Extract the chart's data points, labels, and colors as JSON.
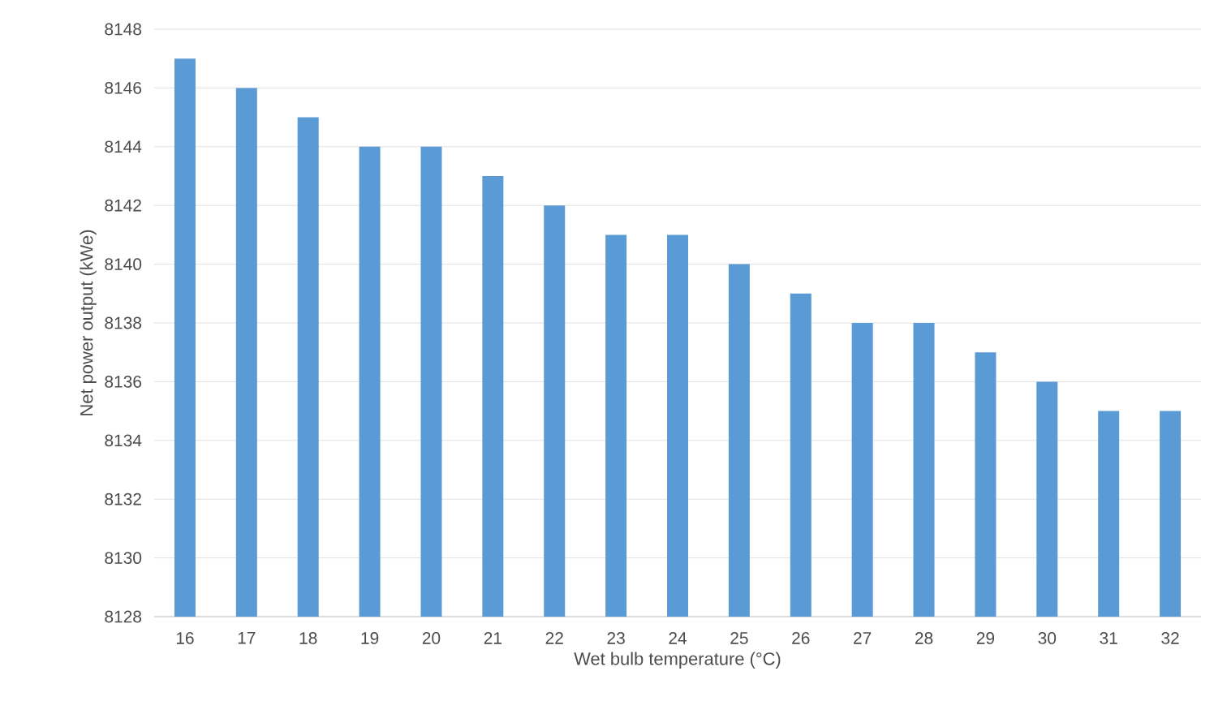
{
  "chart_data": {
    "type": "bar",
    "xlabel": "Wet bulb temperature (°C)",
    "ylabel": "Net power output (kWe)",
    "categories": [
      "16",
      "17",
      "18",
      "19",
      "20",
      "21",
      "22",
      "23",
      "24",
      "25",
      "26",
      "27",
      "28",
      "29",
      "30",
      "31",
      "32"
    ],
    "values": [
      8147,
      8146,
      8145,
      8144,
      8144,
      8143,
      8142,
      8141,
      8141,
      8140,
      8139,
      8138,
      8138,
      8137,
      8136,
      8135,
      8135
    ],
    "color": "#5b9bd5",
    "ylim": [
      8128,
      8148
    ],
    "yticks": [
      8128,
      8130,
      8132,
      8134,
      8136,
      8138,
      8140,
      8142,
      8144,
      8146,
      8148
    ],
    "grid": "y"
  }
}
